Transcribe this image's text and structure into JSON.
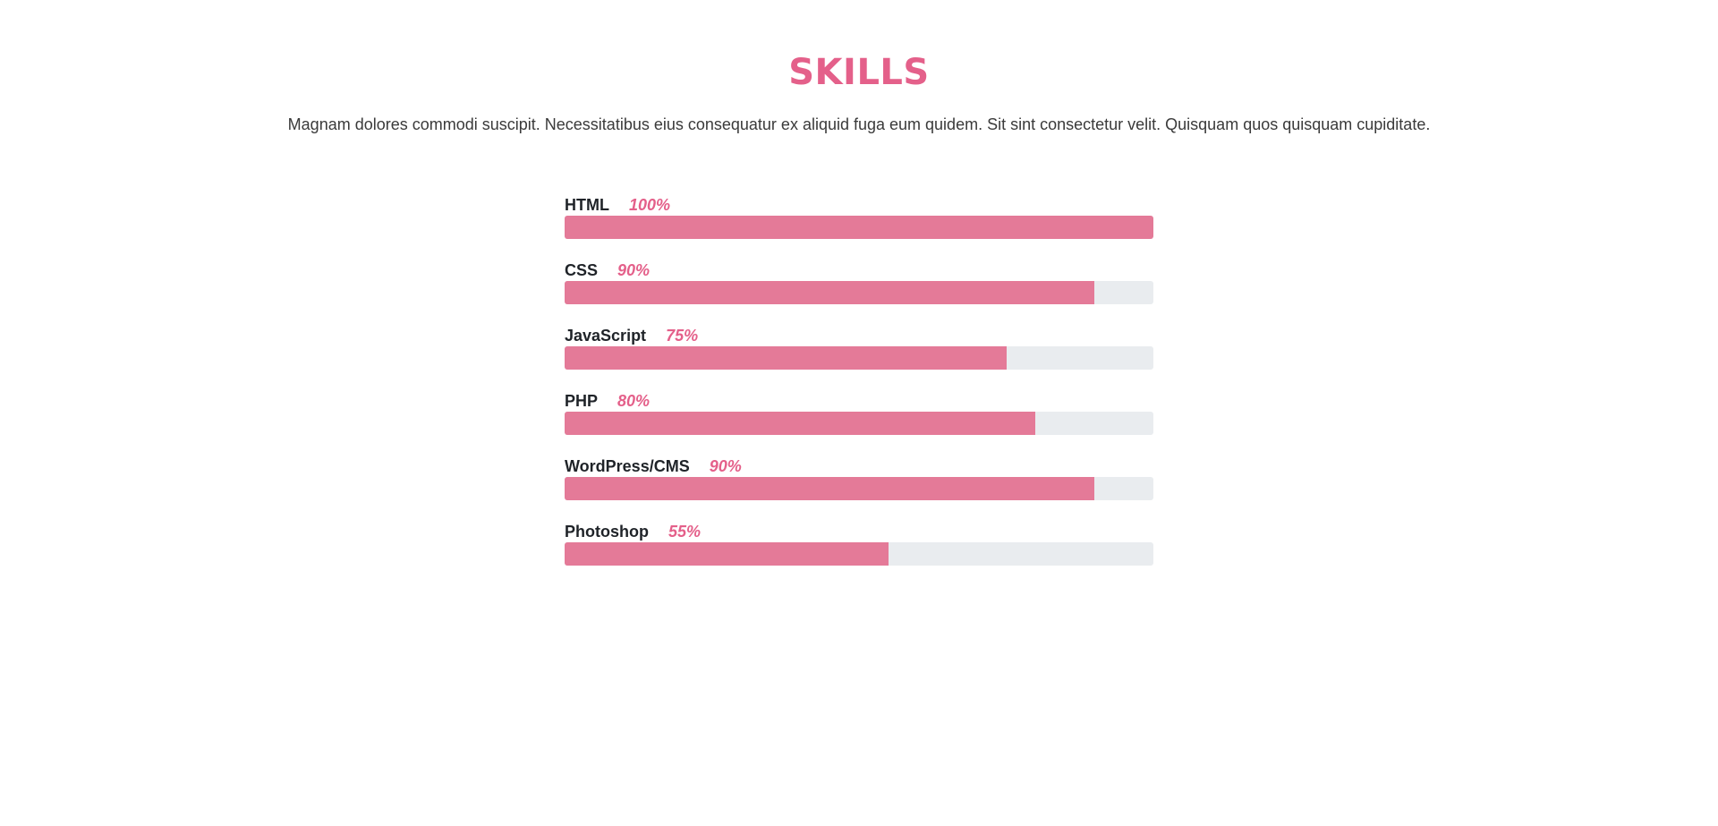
{
  "header": {
    "title": "SKILLS",
    "text": "Magnam dolores commodi suscipit. Necessitatibus eius consequatur ex aliquid fuga eum quidem. Sit sint consectetur velit. Quisquam quos quisquam cupiditate."
  },
  "skills": [
    {
      "name": "HTML",
      "value": 100,
      "label": "100%"
    },
    {
      "name": "CSS",
      "value": 90,
      "label": "90%"
    },
    {
      "name": "JavaScript",
      "value": 75,
      "label": "75%"
    },
    {
      "name": "PHP",
      "value": 80,
      "label": "80%"
    },
    {
      "name": "WordPress/CMS",
      "value": 90,
      "label": "90%"
    },
    {
      "name": "Photoshop",
      "value": 55,
      "label": "55%"
    }
  ]
}
